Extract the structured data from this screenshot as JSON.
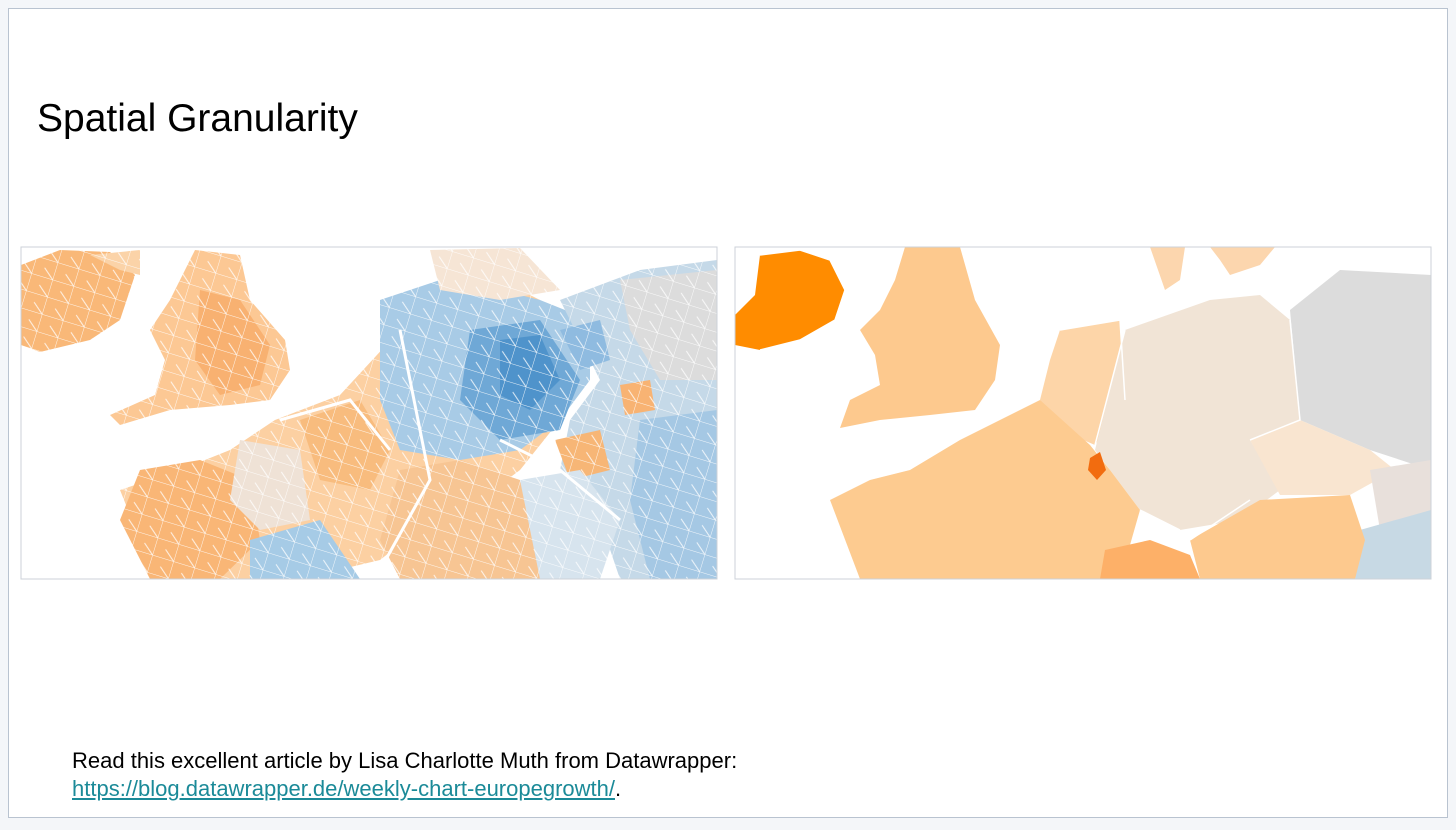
{
  "title": "Spatial Granularity",
  "caption": {
    "text": "Read this excellent article by Lisa Charlotte Muth from Datawrapper:",
    "link": "https://blog.datawrapper.de/weekly-chart-europegrowth/",
    "trailing": "."
  }
}
